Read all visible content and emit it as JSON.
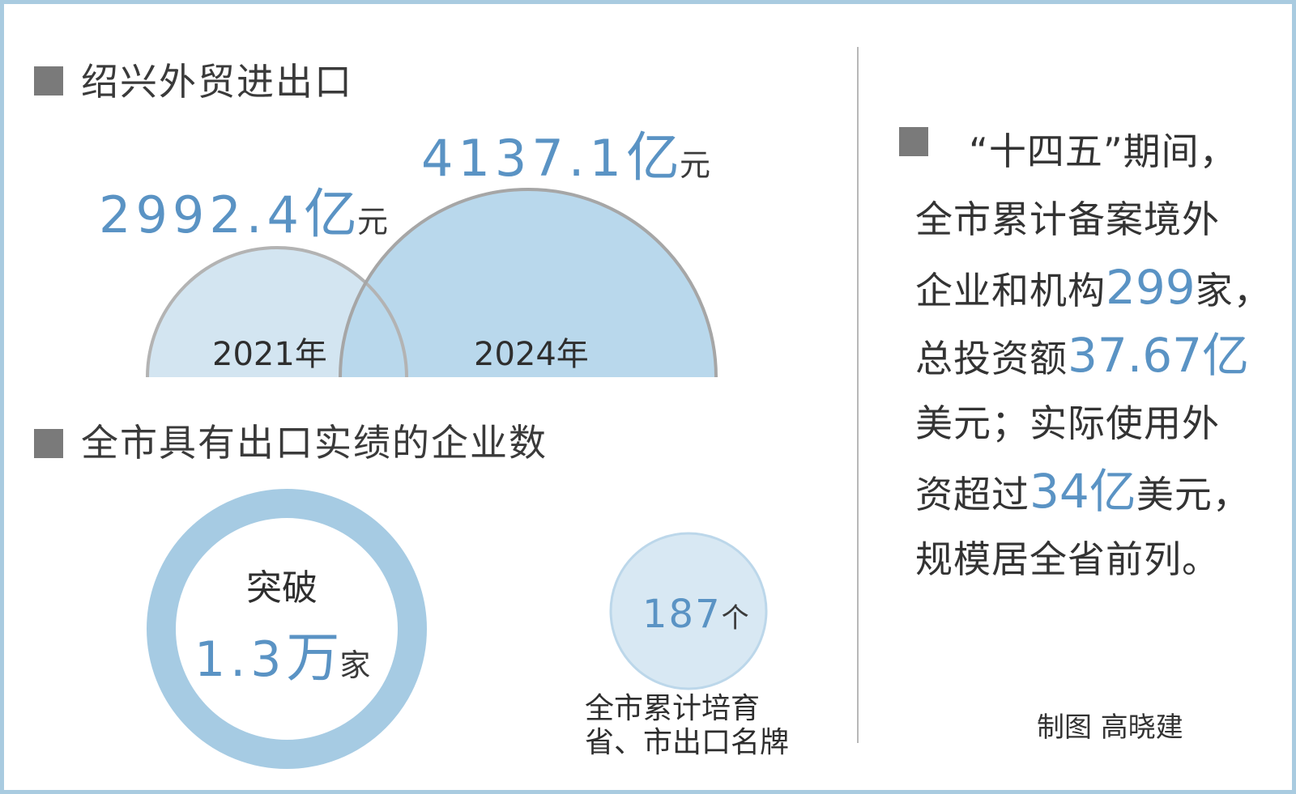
{
  "section1": {
    "title": "绍兴外贸进出口",
    "bubbles": [
      {
        "year": "2021年",
        "value": "2992.4",
        "unit_big": "亿",
        "unit": "元"
      },
      {
        "year": "2024年",
        "value": "4137.1",
        "unit_big": "亿",
        "unit": "元"
      }
    ]
  },
  "section2": {
    "title": "全市具有出口实绩的企业数",
    "ring": {
      "prefix": "突破",
      "value": "1.3",
      "unit_big": "万",
      "unit": "家"
    },
    "small": {
      "value": "187",
      "unit": "个",
      "caption_line1": "全市累计培育",
      "caption_line2": "省、市出口名牌"
    }
  },
  "right": {
    "lines": [
      [
        "“十四五”期间，"
      ],
      [
        "全市累计备案境外"
      ],
      [
        "企业和机构",
        "299",
        "家，"
      ],
      [
        "总投资额",
        "37.67亿",
        ""
      ],
      [
        "美元；实际使用外"
      ],
      [
        "资超过",
        "34亿",
        "美元，"
      ],
      [
        "规模居全省前列。"
      ]
    ],
    "credit": "制图  高晓建"
  },
  "colors": {
    "accent": "#5a93c4",
    "bubble_fill": "#b9d8ec",
    "bubble_light": "#d3e5f1",
    "ring": "#a6cbe3",
    "frame": "#a9cbe0",
    "bullet": "#7a7a7a"
  }
}
